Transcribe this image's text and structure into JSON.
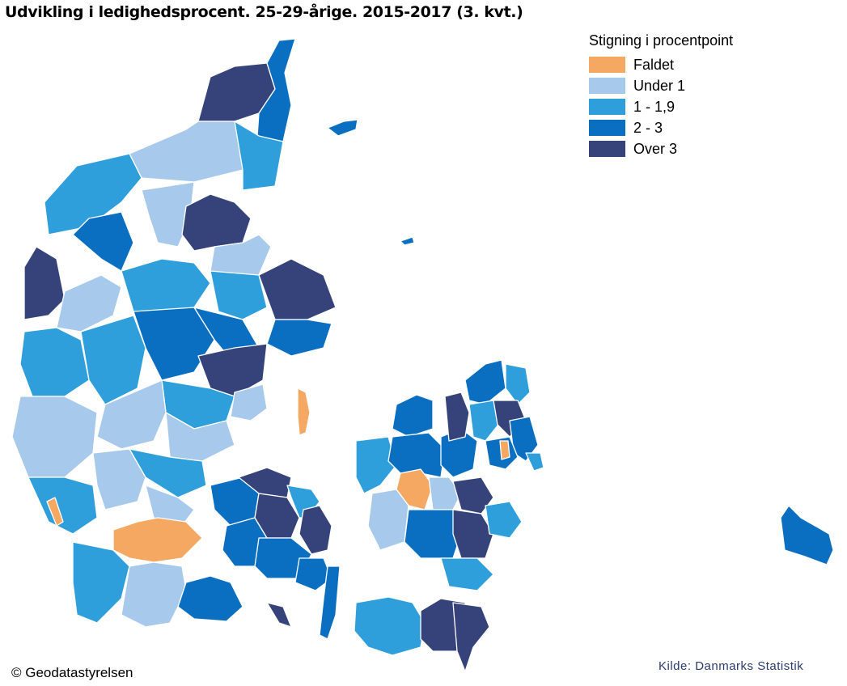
{
  "title": "Udvikling i ledighedsprocent. 25-29-årige. 2015-2017 (3. kvt.)",
  "legend": {
    "title": "Stigning i procentpoint",
    "items": [
      {
        "label": "Faldet",
        "color": "#f4a862"
      },
      {
        "label": "Under 1",
        "color": "#a6c9ec"
      },
      {
        "label": "1 - 1,9",
        "color": "#2e9fdb"
      },
      {
        "label": "2 - 3",
        "color": "#0a6fc0"
      },
      {
        "label": "Over 3",
        "color": "#35437a"
      }
    ]
  },
  "copyright": "© Geodatastyrelsen",
  "source": "Kilde: Danmarks Statistik"
}
